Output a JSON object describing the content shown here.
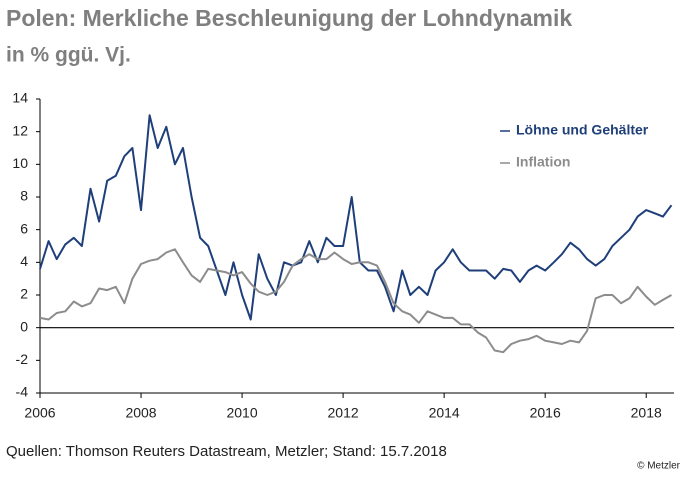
{
  "chart_data": {
    "type": "line",
    "title": "Polen: Merkliche Beschleunigung der Lohndynamik",
    "subtitle": "in % ggü. Vj.",
    "source": "Quellen: Thomson Reuters Datastream, Metzler; Stand: 15.7.2018",
    "copyright": "© Metzler",
    "x": [
      2006,
      2006.17,
      2006.33,
      2006.5,
      2006.67,
      2006.83,
      2007,
      2007.17,
      2007.33,
      2007.5,
      2007.67,
      2007.83,
      2008,
      2008.17,
      2008.33,
      2008.5,
      2008.67,
      2008.83,
      2009,
      2009.17,
      2009.33,
      2009.5,
      2009.67,
      2009.83,
      2010,
      2010.17,
      2010.33,
      2010.5,
      2010.67,
      2010.83,
      2011,
      2011.17,
      2011.33,
      2011.5,
      2011.67,
      2011.83,
      2012,
      2012.17,
      2012.33,
      2012.5,
      2012.67,
      2012.83,
      2013,
      2013.17,
      2013.33,
      2013.5,
      2013.67,
      2013.83,
      2014,
      2014.17,
      2014.33,
      2014.5,
      2014.67,
      2014.83,
      2015,
      2015.17,
      2015.33,
      2015.5,
      2015.67,
      2015.83,
      2016,
      2016.17,
      2016.33,
      2016.5,
      2016.67,
      2016.83,
      2017,
      2017.17,
      2017.33,
      2017.5,
      2017.67,
      2017.83,
      2018,
      2018.17,
      2018.33,
      2018.5
    ],
    "series": [
      {
        "name": "Löhne und Gehälter",
        "color": "#1f3f7a",
        "values": [
          3.6,
          5.3,
          4.2,
          5.1,
          5.5,
          5.0,
          8.5,
          6.5,
          9.0,
          9.3,
          10.5,
          11.0,
          7.2,
          13.0,
          11.0,
          12.3,
          10.0,
          11.0,
          8.0,
          5.5,
          5.0,
          3.5,
          2.0,
          4.0,
          2.0,
          0.5,
          4.5,
          3.0,
          2.0,
          4.0,
          3.8,
          4.0,
          5.3,
          4.0,
          5.5,
          5.0,
          5.0,
          8.0,
          4.0,
          3.5,
          3.5,
          2.5,
          1.0,
          3.5,
          2.0,
          2.5,
          2.0,
          3.5,
          4.0,
          4.8,
          4.0,
          3.5,
          3.5,
          3.5,
          3.0,
          3.6,
          3.5,
          2.8,
          3.5,
          3.8,
          3.5,
          4.0,
          4.5,
          5.2,
          4.8,
          4.2,
          3.8,
          4.2,
          5.0,
          5.5,
          6.0,
          6.8,
          7.2,
          7.0,
          6.8,
          7.5
        ]
      },
      {
        "name": "Inflation",
        "color": "#8c8c8c",
        "values": [
          0.6,
          0.5,
          0.9,
          1.0,
          1.6,
          1.3,
          1.5,
          2.4,
          2.3,
          2.5,
          1.5,
          3.0,
          3.9,
          4.1,
          4.2,
          4.6,
          4.8,
          4.0,
          3.2,
          2.8,
          3.6,
          3.5,
          3.4,
          3.2,
          3.4,
          2.7,
          2.2,
          2.0,
          2.2,
          2.8,
          3.8,
          4.2,
          4.5,
          4.2,
          4.2,
          4.6,
          4.2,
          3.9,
          4.0,
          4.0,
          3.8,
          2.8,
          1.5,
          1.0,
          0.8,
          0.3,
          1.0,
          0.8,
          0.6,
          0.6,
          0.2,
          0.2,
          -0.3,
          -0.6,
          -1.4,
          -1.5,
          -1.0,
          -0.8,
          -0.7,
          -0.5,
          -0.8,
          -0.9,
          -1.0,
          -0.8,
          -0.9,
          -0.2,
          1.8,
          2.0,
          2.0,
          1.5,
          1.8,
          2.5,
          1.9,
          1.4,
          1.7,
          2.0
        ]
      }
    ],
    "xlim": [
      2006,
      2018.55
    ],
    "xticks": [
      2006,
      2008,
      2010,
      2012,
      2014,
      2016,
      2018
    ],
    "ylim": [
      -4,
      14
    ],
    "yticks": [
      -4,
      -2,
      0,
      2,
      4,
      6,
      8,
      10,
      12,
      14
    ]
  }
}
